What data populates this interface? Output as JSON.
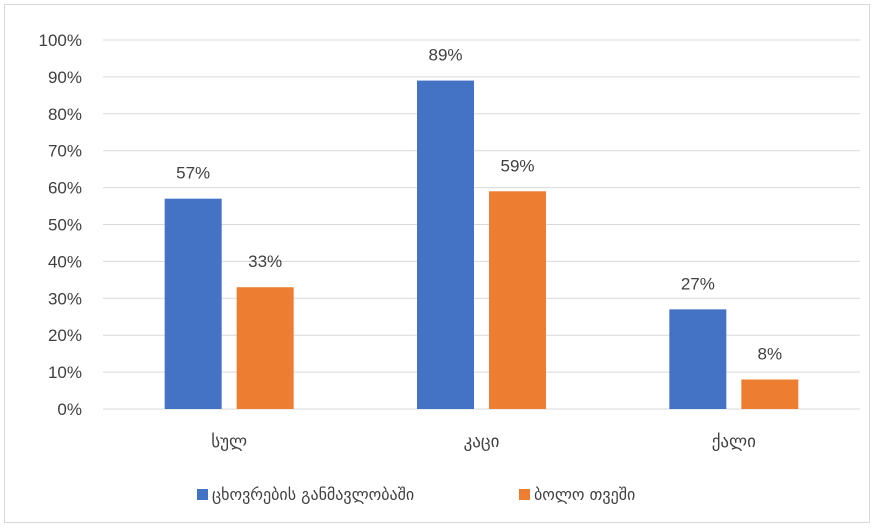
{
  "chart_data": {
    "type": "bar",
    "categories": [
      "სულ",
      "კაცი",
      "ქალი"
    ],
    "series": [
      {
        "name": "ცხოვრების განმავლობაში",
        "values": [
          57,
          89,
          27
        ],
        "color": "#4472c4"
      },
      {
        "name": "ბოლო თვეში",
        "values": [
          33,
          59,
          8
        ],
        "color": "#ed7d31"
      }
    ],
    "ylim": [
      0,
      100
    ],
    "yticks": [
      "0%",
      "10%",
      "20%",
      "30%",
      "40%",
      "50%",
      "60%",
      "70%",
      "80%",
      "90%",
      "100%"
    ],
    "data_labels": [
      [
        "57%",
        "89%",
        "27%"
      ],
      [
        "33%",
        "59%",
        "8%"
      ]
    ],
    "grid": true,
    "legend": "bottom",
    "gridline_color": "#d9d9d9"
  }
}
